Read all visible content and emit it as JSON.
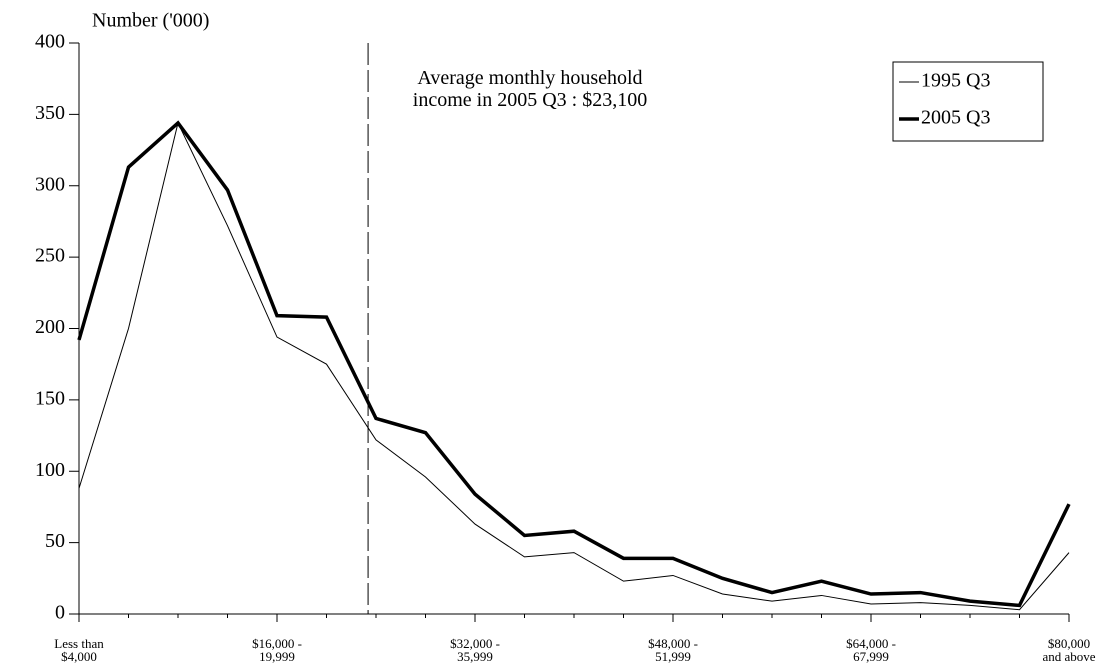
{
  "chart_data": {
    "type": "line",
    "y_axis_label": "Number ('000)",
    "categories": [
      "Less than\n$4,000",
      null,
      null,
      null,
      "$16,000 -\n19,999",
      null,
      null,
      null,
      "$32,000 -\n35,999",
      null,
      null,
      null,
      "$48,000 -\n51,999",
      null,
      null,
      null,
      "$64,000 -\n67,999",
      null,
      null,
      null,
      "$80,000\nand above"
    ],
    "series": [
      {
        "name": "1995 Q3",
        "color": "#000000",
        "width": 1,
        "values": [
          88,
          200,
          344,
          272,
          194,
          175,
          122,
          96,
          63,
          40,
          43,
          23,
          27,
          14,
          9,
          13,
          7,
          8,
          6,
          3,
          43
        ]
      },
      {
        "name": "2005 Q3",
        "color": "#000000",
        "width": 3.5,
        "values": [
          192,
          313,
          344,
          297,
          209,
          208,
          137,
          127,
          84,
          55,
          58,
          39,
          39,
          25,
          15,
          23,
          14,
          15,
          9,
          6,
          77
        ]
      }
    ],
    "annotation": {
      "text": "Average monthly household\nincome in 2005 Q3 : $23,100",
      "x": 5.84
    },
    "ylim": [
      0,
      400
    ],
    "yticks": [
      0,
      50,
      100,
      150,
      200,
      250,
      300,
      350,
      400
    ],
    "legend": "top-right"
  }
}
